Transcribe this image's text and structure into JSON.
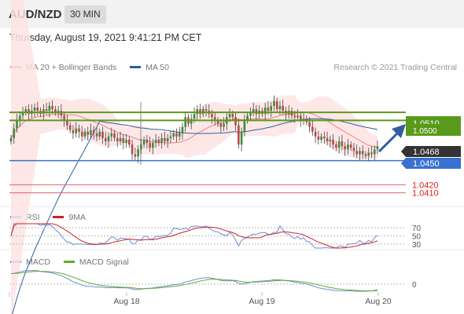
{
  "header": {
    "symbol": "AUD/NZD",
    "timeframe": "30 MIN"
  },
  "timestamp": "Thursday, August 19, 2021 9:41:21 PM CET",
  "legend": {
    "ma20": "MA 20 + Bollinger Bands",
    "ma50": "MA 50",
    "rsi": "RSI",
    "ma9": "9MA",
    "macd": "MACD",
    "macd_signal": "MACD Signal"
  },
  "research": "Research © 2021 Trading Central",
  "colors": {
    "bull": "#3c8c3c",
    "bear": "#b94a48",
    "ma20": "#f08080",
    "ma50": "#2e5e9e",
    "green_level": "#5a9a1a",
    "blue_level": "#3a70d0",
    "red_level": "#e06070",
    "price_box": "#333333",
    "rsi": "#6b8fd6",
    "ma9": "#cc2222",
    "macd": "#6b8fd6",
    "macd_signal": "#66aa33"
  },
  "chart_data": {
    "type": "candlestick",
    "x_ticks": [
      "Aug 18",
      "Aug 19",
      "Aug 20"
    ],
    "price_levels": [
      {
        "value": 1.051,
        "label": "1.0510",
        "kind": "resistance"
      },
      {
        "value": 1.05,
        "label": "1.0500",
        "kind": "resistance"
      },
      {
        "value": 1.0468,
        "label": "1.0468",
        "kind": "current"
      },
      {
        "value": 1.045,
        "label": "1.0450",
        "kind": "support"
      },
      {
        "value": 1.042,
        "label": "1.0420",
        "kind": "support"
      },
      {
        "value": 1.041,
        "label": "1.0410",
        "kind": "support"
      }
    ],
    "price_range": [
      1.0394,
      1.0556
    ],
    "closes": [
      1.0478,
      1.049,
      1.05,
      1.0506,
      1.051,
      1.0514,
      1.0508,
      1.0512,
      1.0516,
      1.0512,
      1.0508,
      1.0514,
      1.0512,
      1.0518,
      1.0514,
      1.051,
      1.0512,
      1.0506,
      1.05,
      1.0494,
      1.0488,
      1.0484,
      1.049,
      1.0486,
      1.048,
      1.0486,
      1.0482,
      1.0488,
      1.0484,
      1.048,
      1.0486,
      1.0478,
      1.0474,
      1.048,
      1.0484,
      1.0478,
      1.0474,
      1.0478,
      1.0472,
      1.0476,
      1.047,
      1.0458,
      1.0455,
      1.0464,
      1.047,
      1.0476,
      1.0472,
      1.0466,
      1.0472,
      1.0476,
      1.0472,
      1.0478,
      1.0474,
      1.0478,
      1.048,
      1.0484,
      1.048,
      1.0484,
      1.0492,
      1.0504,
      1.0496,
      1.0502,
      1.0508,
      1.0514,
      1.0508,
      1.0514,
      1.0512,
      1.0508,
      1.0504,
      1.05,
      1.0496,
      1.0492,
      1.0496,
      1.0504,
      1.0508,
      1.0504,
      1.0494,
      1.047,
      1.0486,
      1.05,
      1.0506,
      1.051,
      1.0514,
      1.0508,
      1.0512,
      1.0508,
      1.0516,
      1.0512,
      1.0518,
      1.0524,
      1.0514,
      1.0518,
      1.0512,
      1.0508,
      1.0512,
      1.0506,
      1.0504,
      1.0506,
      1.05,
      1.0502,
      1.0498,
      1.0492,
      1.0486,
      1.048,
      1.0476,
      1.048,
      1.0478,
      1.0474,
      1.0476,
      1.047,
      1.0466,
      1.0474,
      1.0468,
      1.0464,
      1.047,
      1.0466,
      1.0462,
      1.0458,
      1.0462,
      1.0458,
      1.0456,
      1.046,
      1.0458,
      1.0464,
      1.0468
    ],
    "indicators": {
      "rsi": {
        "levels": [
          70,
          50,
          30
        ],
        "range": [
          20,
          80
        ]
      },
      "macd": {
        "levels": [
          0
        ]
      }
    }
  }
}
